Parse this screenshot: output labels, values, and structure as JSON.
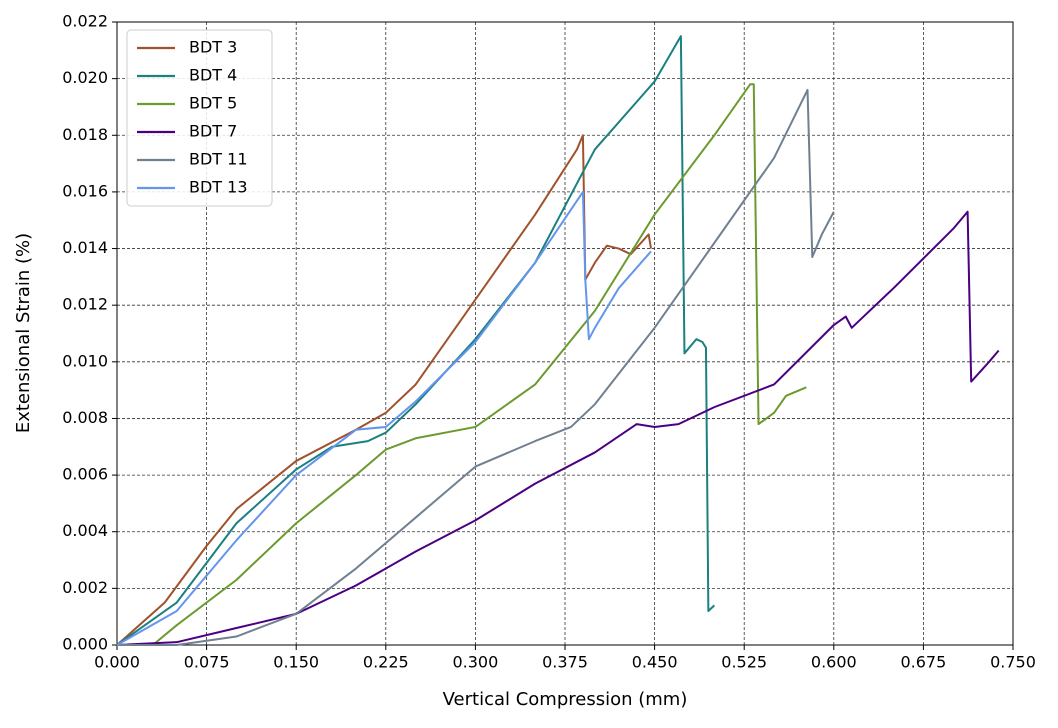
{
  "chart_data": {
    "type": "line",
    "x_label": "Vertical Compression (mm)",
    "y_label": "Extensional Strain (%)",
    "xlim": [
      0,
      0.75
    ],
    "ylim": [
      0,
      0.022
    ],
    "xticks": [
      {
        "value": 0,
        "label": "0.000"
      },
      {
        "value": 0.075,
        "label": "0.075"
      },
      {
        "value": 0.15,
        "label": "0.150"
      },
      {
        "value": 0.225,
        "label": "0.225"
      },
      {
        "value": 0.3,
        "label": "0.300"
      },
      {
        "value": 0.375,
        "label": "0.375"
      },
      {
        "value": 0.45,
        "label": "0.450"
      },
      {
        "value": 0.525,
        "label": "0.525"
      },
      {
        "value": 0.6,
        "label": "0.600"
      },
      {
        "value": 0.675,
        "label": "0.675"
      },
      {
        "value": 0.75,
        "label": "0.750"
      }
    ],
    "yticks": [
      {
        "value": 0,
        "label": "0.000"
      },
      {
        "value": 0.002,
        "label": "0.002"
      },
      {
        "value": 0.004,
        "label": "0.004"
      },
      {
        "value": 0.006,
        "label": "0.006"
      },
      {
        "value": 0.008,
        "label": "0.008"
      },
      {
        "value": 0.01,
        "label": "0.010"
      },
      {
        "value": 0.012,
        "label": "0.012"
      },
      {
        "value": 0.014,
        "label": "0.014"
      },
      {
        "value": 0.016,
        "label": "0.016"
      },
      {
        "value": 0.018,
        "label": "0.018"
      },
      {
        "value": 0.02,
        "label": "0.020"
      },
      {
        "value": 0.022,
        "label": "0.022"
      }
    ],
    "grid": true,
    "legend": "upper-left",
    "series": [
      {
        "name": "BDT 3",
        "color": "#a0522d",
        "x": [
          0,
          0.04,
          0.075,
          0.1,
          0.15,
          0.2,
          0.225,
          0.25,
          0.3,
          0.35,
          0.385,
          0.39,
          0.392,
          0.4,
          0.41,
          0.42,
          0.43,
          0.445,
          0.447
        ],
        "values": [
          0,
          0.0015,
          0.0035,
          0.0048,
          0.0065,
          0.0076,
          0.0082,
          0.0092,
          0.0122,
          0.0152,
          0.0175,
          0.018,
          0.0129,
          0.0135,
          0.0141,
          0.014,
          0.0138,
          0.0145,
          0.014
        ]
      },
      {
        "name": "BDT 4",
        "color": "#1a8080",
        "x": [
          0,
          0.05,
          0.1,
          0.15,
          0.18,
          0.21,
          0.225,
          0.25,
          0.3,
          0.35,
          0.4,
          0.45,
          0.472,
          0.475,
          0.485,
          0.49,
          0.493,
          0.495,
          0.5
        ],
        "values": [
          0,
          0.0015,
          0.0043,
          0.0062,
          0.007,
          0.0072,
          0.0075,
          0.0085,
          0.0108,
          0.0135,
          0.0175,
          0.0199,
          0.0215,
          0.0103,
          0.0108,
          0.0107,
          0.0105,
          0.0012,
          0.0014
        ]
      },
      {
        "name": "BDT 5",
        "color": "#6b9a2f",
        "x": [
          0,
          0.03,
          0.05,
          0.1,
          0.15,
          0.2,
          0.225,
          0.25,
          0.3,
          0.35,
          0.4,
          0.45,
          0.5,
          0.53,
          0.533,
          0.537,
          0.55,
          0.56,
          0.577
        ],
        "values": [
          0,
          0,
          0.0007,
          0.0023,
          0.0043,
          0.006,
          0.0069,
          0.0073,
          0.0077,
          0.0092,
          0.0118,
          0.0152,
          0.018,
          0.0198,
          0.0198,
          0.0078,
          0.0082,
          0.0088,
          0.0091
        ]
      },
      {
        "name": "BDT 7",
        "color": "#4b0082",
        "x": [
          0,
          0.05,
          0.1,
          0.15,
          0.2,
          0.25,
          0.3,
          0.35,
          0.4,
          0.435,
          0.45,
          0.47,
          0.5,
          0.55,
          0.6,
          0.61,
          0.615,
          0.65,
          0.7,
          0.712,
          0.715,
          0.73,
          0.738
        ],
        "values": [
          0,
          0.0001,
          0.0006,
          0.0011,
          0.0021,
          0.0033,
          0.0044,
          0.0057,
          0.0068,
          0.0078,
          0.0077,
          0.0078,
          0.0084,
          0.0092,
          0.0113,
          0.0116,
          0.0112,
          0.0126,
          0.0147,
          0.0153,
          0.0093,
          0.01,
          0.0104
        ]
      },
      {
        "name": "BDT 11",
        "color": "#708090",
        "x": [
          0,
          0.05,
          0.1,
          0.15,
          0.2,
          0.25,
          0.3,
          0.35,
          0.38,
          0.4,
          0.45,
          0.5,
          0.55,
          0.578,
          0.582,
          0.59,
          0.6
        ],
        "values": [
          0,
          0,
          0.0003,
          0.0011,
          0.0027,
          0.0045,
          0.0063,
          0.0072,
          0.0077,
          0.0085,
          0.0112,
          0.0142,
          0.0172,
          0.0196,
          0.0137,
          0.0145,
          0.0153
        ]
      },
      {
        "name": "BDT 13",
        "color": "#6495ed",
        "x": [
          0,
          0.05,
          0.1,
          0.15,
          0.2,
          0.225,
          0.25,
          0.3,
          0.35,
          0.39,
          0.392,
          0.395,
          0.4,
          0.42,
          0.447
        ],
        "values": [
          0,
          0.0012,
          0.0037,
          0.006,
          0.0076,
          0.0077,
          0.0086,
          0.0107,
          0.0135,
          0.016,
          0.0129,
          0.0108,
          0.0112,
          0.0126,
          0.0139
        ]
      }
    ]
  }
}
